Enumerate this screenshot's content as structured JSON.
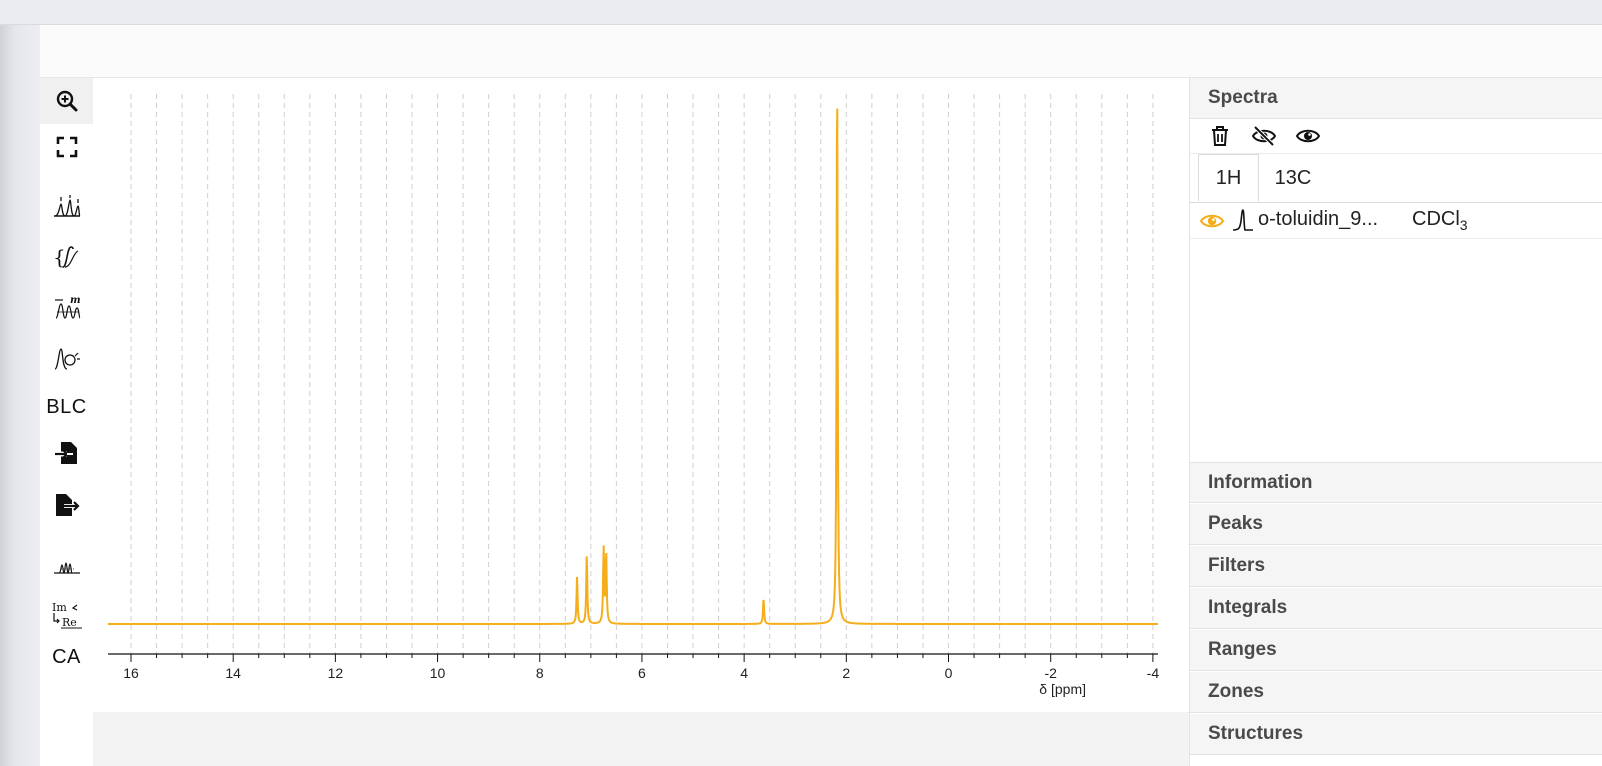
{
  "colors": {
    "spectrum": "#f5ad1a",
    "accent": "#f5ad1a"
  },
  "toolbar": {
    "tools": [
      {
        "name": "zoom-in-icon"
      },
      {
        "name": "fullscreen-icon"
      },
      {
        "name": "peak-picking-icon"
      },
      {
        "name": "integral-icon"
      },
      {
        "name": "multiplet-icon"
      },
      {
        "name": "phase-correction-icon"
      },
      {
        "name": "baseline-correction",
        "label": "BLC"
      },
      {
        "name": "import-icon"
      },
      {
        "name": "export-icon"
      },
      {
        "name": "spectrum-stack-icon"
      },
      {
        "name": "real-imaginary-icon"
      },
      {
        "name": "auto-assignment",
        "label": "CA"
      }
    ]
  },
  "panel": {
    "spectra_title": "Spectra",
    "tool_icons": [
      "delete-icon",
      "hide-all-icon",
      "show-all-icon"
    ],
    "tabs": [
      {
        "label": "1H",
        "active": true
      },
      {
        "label": "13C",
        "active": false
      }
    ],
    "spectrum_item": {
      "name": "o-toluidin_9...",
      "solvent_base": "CDCl",
      "solvent_sub": "3",
      "visible": true
    },
    "sections": [
      {
        "label": "Information"
      },
      {
        "label": "Peaks"
      },
      {
        "label": "Filters"
      },
      {
        "label": "Integrals"
      },
      {
        "label": "Ranges"
      },
      {
        "label": "Zones"
      },
      {
        "label": "Structures"
      }
    ]
  },
  "chart_data": {
    "type": "line",
    "xlabel": "δ [ppm]",
    "xlim": [
      16.45,
      -4.1
    ],
    "x_ticks": [
      16,
      14,
      12,
      10,
      8,
      6,
      4,
      2,
      0,
      -2,
      -4
    ],
    "x_tick_labels": [
      "16",
      "14",
      "12",
      "10",
      "8",
      "6",
      "4",
      "2",
      "0",
      "-2",
      "-4"
    ],
    "reversed_axis": true,
    "grid": "vertical-dashed",
    "series": [
      {
        "peaks": [
          {
            "ppm": 7.27,
            "height": 0.1
          },
          {
            "ppm": 7.08,
            "height": 0.15
          },
          {
            "ppm": 6.75,
            "height": 0.16
          },
          {
            "ppm": 6.7,
            "height": 0.15
          },
          {
            "ppm": 3.62,
            "height": 0.055
          },
          {
            "ppm": 2.18,
            "height": 1.2
          }
        ]
      }
    ]
  }
}
